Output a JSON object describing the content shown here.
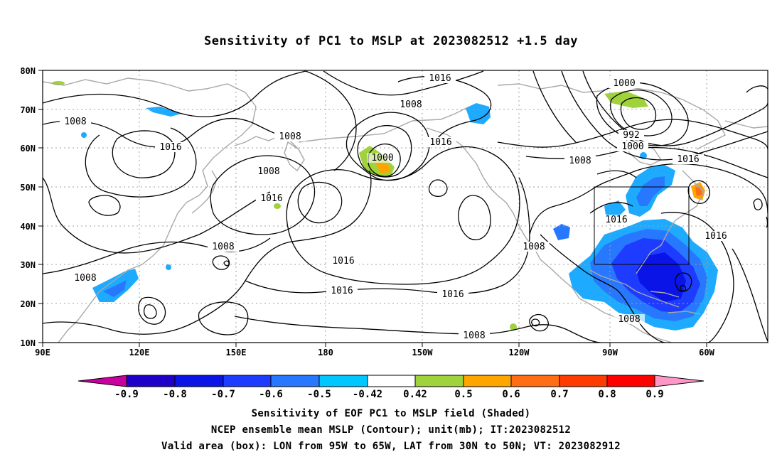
{
  "title": "Sensitivity of PC1 to MSLP at 2023082512 +1.5 day",
  "map": {
    "lat_labels": [
      "80N",
      "70N",
      "60N",
      "50N",
      "40N",
      "30N",
      "20N",
      "10N"
    ],
    "lon_labels": [
      "90E",
      "120E",
      "150E",
      "180",
      "150W",
      "120W",
      "90W",
      "60W"
    ],
    "contour_labels": [
      "1016",
      "1008",
      "1000",
      "992",
      "1000",
      "1008",
      "1016",
      "1016",
      "1016",
      "1008",
      "1016",
      "1008",
      "1008",
      "1000",
      "1016",
      "1016",
      "1008",
      "1008",
      "1016",
      "1016",
      "1008",
      "1008",
      "1016"
    ],
    "box": {
      "lon_from": "95W",
      "lon_to": "65W",
      "lat_from": "30N",
      "lat_to": "50N"
    },
    "colors": {
      "coast": "#a8a8a8",
      "grid": "#a0a0a0",
      "contour": "#000000"
    }
  },
  "colorbar": {
    "labels": [
      "-0.9",
      "-0.8",
      "-0.7",
      "-0.6",
      "-0.5",
      "-0.42",
      "0.42",
      "0.5",
      "0.6",
      "0.7",
      "0.8",
      "0.9"
    ],
    "colors": [
      "#c800a0",
      "#1e00c8",
      "#0a14e6",
      "#1e3cff",
      "#2878ff",
      "#1eaaff",
      "#00c8ff",
      "#ffffff",
      "#a0d23c",
      "#ffa500",
      "#ff6e14",
      "#ff3c00",
      "#ff0000",
      "#ff96c8"
    ]
  },
  "captions": [
    "Sensitivity of EOF PC1 to MSLP field (Shaded)",
    "NCEP ensemble mean MSLP (Contour); unit(mb); IT:2023082512",
    "Valid area (box): LON from 95W to 65W, LAT from 30N to 50N; VT: 2023082912"
  ]
}
